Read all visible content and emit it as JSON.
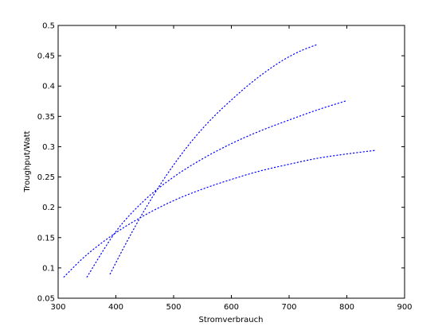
{
  "chart_data": {
    "type": "line",
    "title": "",
    "xlabel": "Stromverbrauch",
    "ylabel": "Troughput/Watt",
    "xlim": [
      300,
      900
    ],
    "ylim": [
      0.05,
      0.5
    ],
    "x_ticks": [
      "300",
      "400",
      "500",
      "600",
      "700",
      "800",
      "900"
    ],
    "y_ticks": [
      "0.05",
      "0.1",
      "0.15",
      "0.2",
      "0.25",
      "0.3",
      "0.35",
      "0.4",
      "0.45",
      "0.5"
    ],
    "grid": false,
    "legend": "none",
    "line_style": "dotted",
    "series_color": "#0000ff",
    "series": [
      {
        "x": [
          390,
          420,
          450,
          480,
          510,
          540,
          570,
          600,
          630,
          660,
          690,
          720,
          750
        ],
        "y": [
          0.09,
          0.145,
          0.196,
          0.242,
          0.283,
          0.319,
          0.35,
          0.377,
          0.402,
          0.424,
          0.443,
          0.458,
          0.469
        ]
      },
      {
        "x": [
          350,
          400,
          450,
          500,
          550,
          600,
          650,
          700,
          750,
          800
        ],
        "y": [
          0.085,
          0.16,
          0.212,
          0.25,
          0.28,
          0.305,
          0.326,
          0.344,
          0.361,
          0.376
        ]
      },
      {
        "x": [
          310,
          350,
          400,
          450,
          500,
          550,
          600,
          650,
          700,
          750,
          800,
          850
        ],
        "y": [
          0.085,
          0.122,
          0.158,
          0.187,
          0.211,
          0.23,
          0.246,
          0.26,
          0.271,
          0.281,
          0.288,
          0.294
        ]
      }
    ]
  }
}
